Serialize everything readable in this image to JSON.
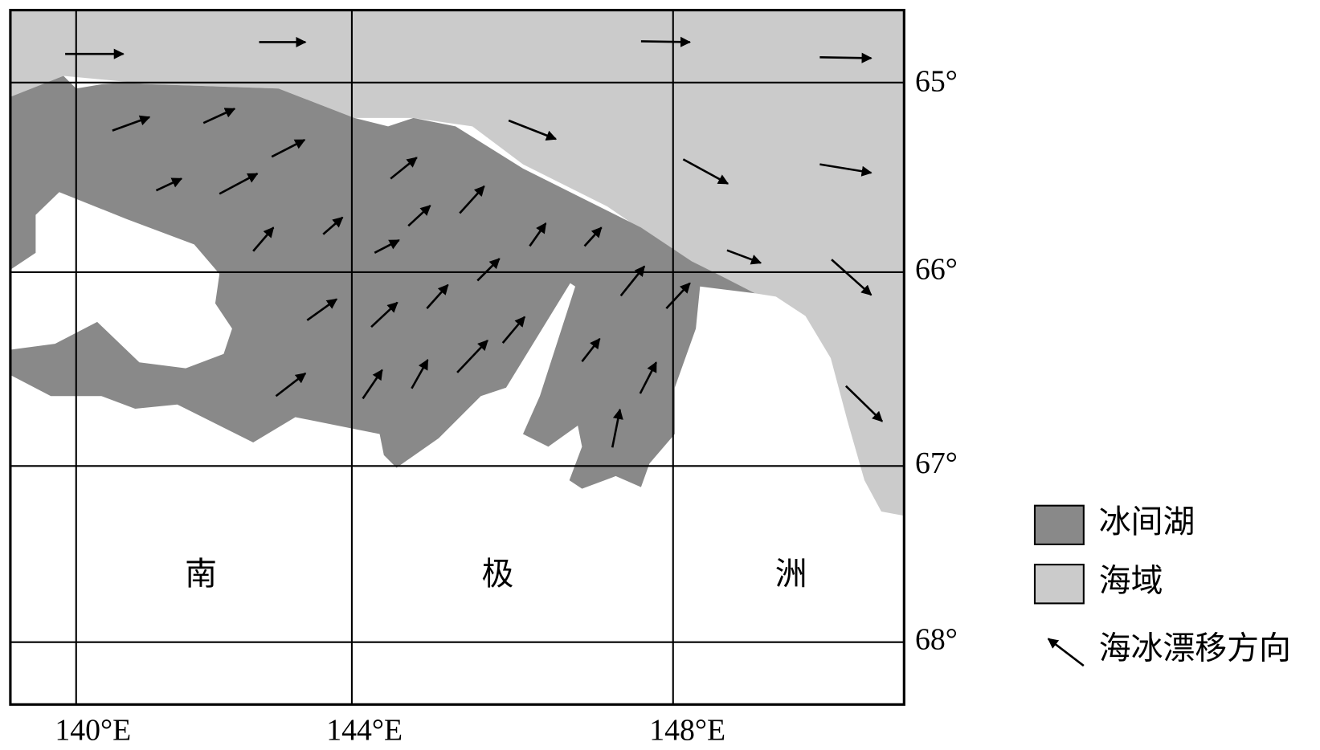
{
  "map": {
    "lon_labels": [
      "140°E",
      "144°E",
      "148°E"
    ],
    "lat_labels": [
      "65°",
      "66°",
      "67°",
      "68°"
    ],
    "region_labels": [
      "南",
      "极",
      "洲"
    ],
    "legend": [
      "冰间湖",
      "海域",
      "海冰漂移方向"
    ]
  }
}
